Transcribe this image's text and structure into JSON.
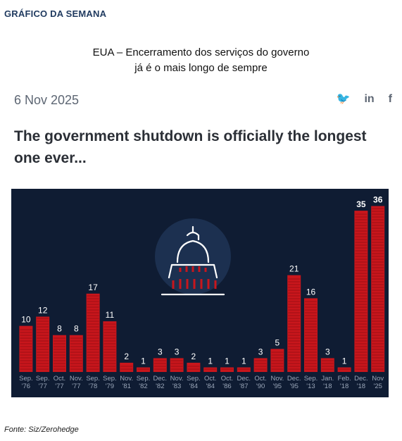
{
  "section_label": "GRÁFICO DA SEMANA",
  "headline": [
    "EUA – Encerramento dos serviços do governo",
    "já é o mais longo de sempre"
  ],
  "date": "6 Nov 2025",
  "share_icons": [
    {
      "name": "twitter-icon",
      "glyph": "🐦"
    },
    {
      "name": "linkedin-icon",
      "glyph": "in"
    },
    {
      "name": "facebook-icon",
      "glyph": "f"
    }
  ],
  "chart_title": [
    "The government shutdown is officially the longest",
    "one ever..."
  ],
  "source": "Fonte: Siz/Zerohedge",
  "colors": {
    "bar": "#c8161c",
    "background": "#0f1c33",
    "label": "#ffffff",
    "tick": "#9aa6b8"
  },
  "chart_data": {
    "type": "bar",
    "ylabel": "",
    "xlabel": "",
    "ylim": [
      0,
      37
    ],
    "categories": [
      [
        "Sep.",
        "'76"
      ],
      [
        "Sep.",
        "'77"
      ],
      [
        "Oct.",
        "'77"
      ],
      [
        "Nov.",
        "'77"
      ],
      [
        "Sep.",
        "'78"
      ],
      [
        "Sep.",
        "'79"
      ],
      [
        "Nov.",
        "'81"
      ],
      [
        "Sep.",
        "'82"
      ],
      [
        "Dec.",
        "'82"
      ],
      [
        "Nov.",
        "'83"
      ],
      [
        "Sep.",
        "'84"
      ],
      [
        "Oct.",
        "'84"
      ],
      [
        "Oct.",
        "'86"
      ],
      [
        "Dec.",
        "'87"
      ],
      [
        "Oct.",
        "'90"
      ],
      [
        "Nov.",
        "'95"
      ],
      [
        "Dec.",
        "'95"
      ],
      [
        "Sep.",
        "'13"
      ],
      [
        "Jan.",
        "'18"
      ],
      [
        "Feb.",
        "'18"
      ],
      [
        "Dec.",
        "'18"
      ],
      [
        "Nov",
        "'25"
      ]
    ],
    "values": [
      10,
      12,
      8,
      8,
      17,
      11,
      2,
      1,
      3,
      3,
      2,
      1,
      1,
      1,
      3,
      5,
      21,
      16,
      3,
      1,
      35,
      36
    ]
  }
}
